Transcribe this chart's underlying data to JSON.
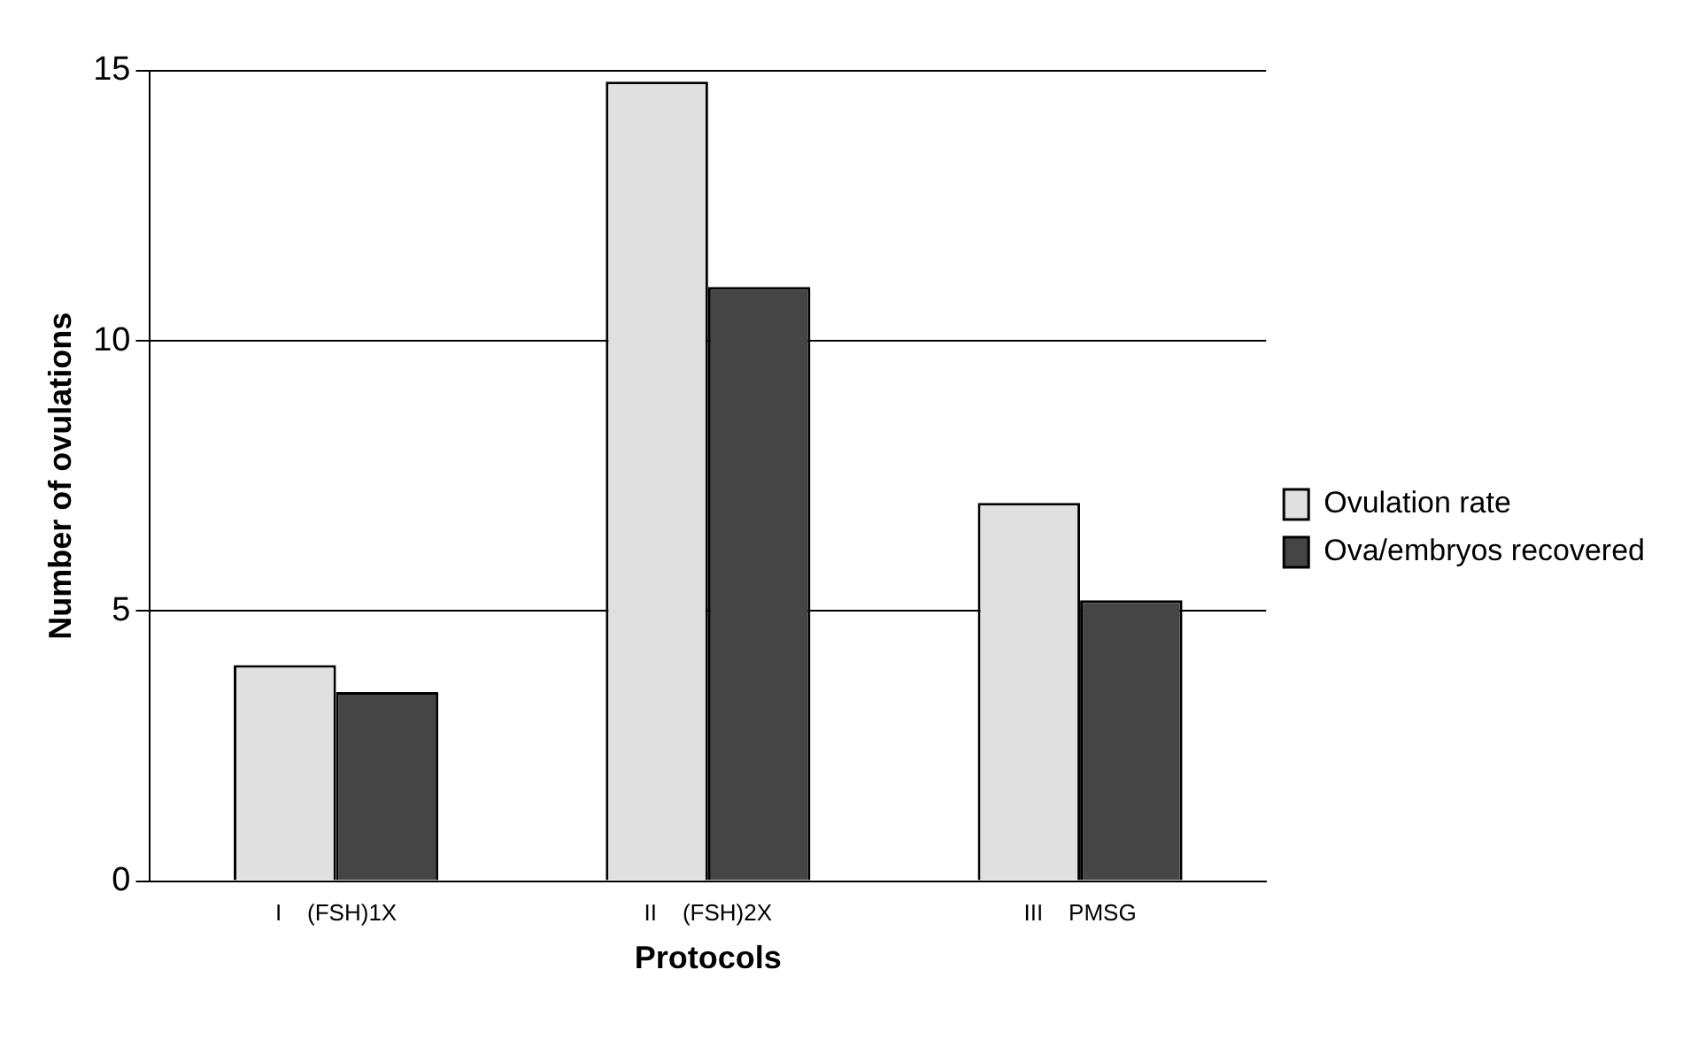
{
  "chart_data": {
    "type": "bar",
    "xlabel": "Protocols",
    "ylabel": "Number of ovulations",
    "categories": [
      "I    (FSH)1X",
      "II    (FSH)2X",
      "III    PMSG"
    ],
    "series": [
      {
        "name": "Ovulation rate",
        "color": "#e0e0e0",
        "values": [
          4,
          14.8,
          7
        ]
      },
      {
        "name": "Ova/embryos recovered",
        "color": "#454545",
        "values": [
          3.5,
          11,
          5.2
        ]
      }
    ],
    "ylim": [
      0,
      15
    ],
    "yticks": [
      0,
      5,
      10,
      15
    ],
    "grid": "y",
    "legend": "right"
  }
}
